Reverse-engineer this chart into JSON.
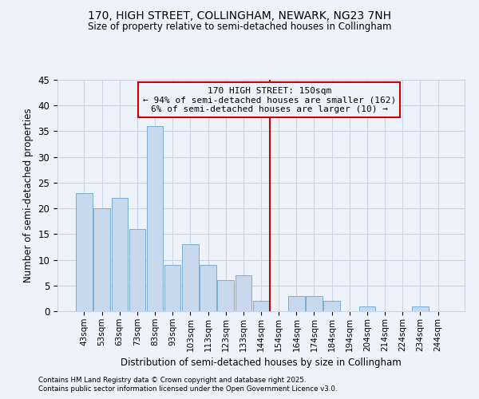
{
  "title1": "170, HIGH STREET, COLLINGHAM, NEWARK, NG23 7NH",
  "title2": "Size of property relative to semi-detached houses in Collingham",
  "xlabel": "Distribution of semi-detached houses by size in Collingham",
  "ylabel": "Number of semi-detached properties",
  "footnote1": "Contains HM Land Registry data © Crown copyright and database right 2025.",
  "footnote2": "Contains public sector information licensed under the Open Government Licence v3.0.",
  "bin_labels": [
    "43sqm",
    "53sqm",
    "63sqm",
    "73sqm",
    "83sqm",
    "93sqm",
    "103sqm",
    "113sqm",
    "123sqm",
    "133sqm",
    "144sqm",
    "154sqm",
    "164sqm",
    "174sqm",
    "184sqm",
    "194sqm",
    "204sqm",
    "214sqm",
    "224sqm",
    "234sqm",
    "244sqm"
  ],
  "bin_values": [
    23,
    20,
    22,
    16,
    36,
    9,
    13,
    9,
    6,
    7,
    2,
    0,
    3,
    3,
    2,
    0,
    1,
    0,
    0,
    1,
    0
  ],
  "bar_color": "#c8d9ee",
  "bar_edge_color": "#7aadd4",
  "grid_color": "#c8d4e8",
  "background_color": "#eef2fb",
  "vline_x_index": 11,
  "vline_color": "#cc0000",
  "annotation_text": "170 HIGH STREET: 150sqm\n← 94% of semi-detached houses are smaller (162)\n6% of semi-detached houses are larger (10) →",
  "annotation_box_color": "#cc0000",
  "ylim": [
    0,
    45
  ],
  "yticks": [
    0,
    5,
    10,
    15,
    20,
    25,
    30,
    35,
    40,
    45
  ]
}
